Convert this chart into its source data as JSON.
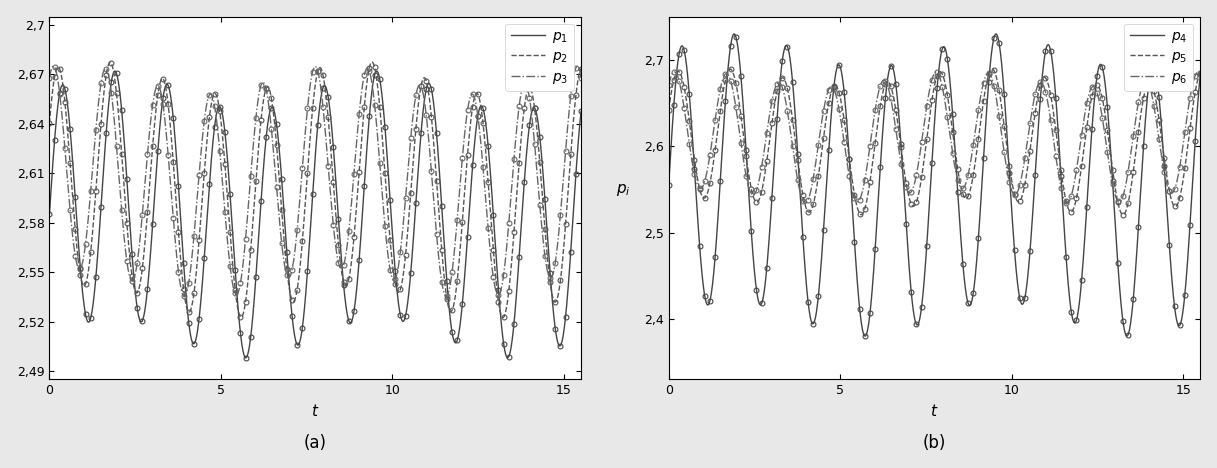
{
  "t_max": 15.5,
  "subplot_a": {
    "ylim": [
      2.485,
      2.705
    ],
    "yticks": [
      2.49,
      2.52,
      2.55,
      2.58,
      2.61,
      2.64,
      2.67,
      2.7
    ],
    "ylabel": "",
    "signals": [
      {
        "base": 2.585,
        "A1": 0.075,
        "f1": 0.655,
        "p1": 0.0,
        "A2": 0.012,
        "f2": 0.13,
        "p2": 0.0,
        "ls": "-",
        "color": "#444444",
        "label": "$p_1$"
      },
      {
        "base": 2.6,
        "A1": 0.068,
        "f1": 0.655,
        "p1": 0.55,
        "A2": 0.01,
        "f2": 0.13,
        "p2": 0.5,
        "ls": "--",
        "color": "#555555",
        "label": "$p_2$"
      },
      {
        "base": 2.605,
        "A1": 0.062,
        "f1": 0.655,
        "p1": 1.1,
        "A2": 0.009,
        "f2": 0.13,
        "p2": 1.0,
        "ls": "-.",
        "color": "#666666",
        "label": "$p_3$"
      }
    ],
    "caption": "(a)"
  },
  "subplot_b": {
    "ylim": [
      2.33,
      2.75
    ],
    "yticks": [
      2.4,
      2.5,
      2.6,
      2.7
    ],
    "ylabel": "$p_i$",
    "signals": [
      {
        "base": 2.555,
        "A1": 0.155,
        "f1": 0.655,
        "p1": 0.0,
        "A2": 0.02,
        "f2": 0.13,
        "p2": 0.0,
        "ls": "-",
        "color": "#444444",
        "label": "$p_4$"
      },
      {
        "base": 2.605,
        "A1": 0.075,
        "f1": 0.655,
        "p1": 0.45,
        "A2": 0.01,
        "f2": 0.13,
        "p2": 0.5,
        "ls": "--",
        "color": "#555555",
        "label": "$p_5$"
      },
      {
        "base": 2.61,
        "A1": 0.068,
        "f1": 0.655,
        "p1": 0.9,
        "A2": 0.009,
        "f2": 0.13,
        "p2": 1.0,
        "ls": "-.",
        "color": "#666666",
        "label": "$p_6$"
      }
    ],
    "caption": "(b)"
  },
  "xlabel": "$t$",
  "xticks": [
    0,
    5,
    10,
    15
  ],
  "line_width": 1.0,
  "marker_size": 3.5,
  "marker_edge_width": 0.8,
  "marker_step": 3,
  "fig_color": "#e8e8e8",
  "axes_color": "#ffffff"
}
